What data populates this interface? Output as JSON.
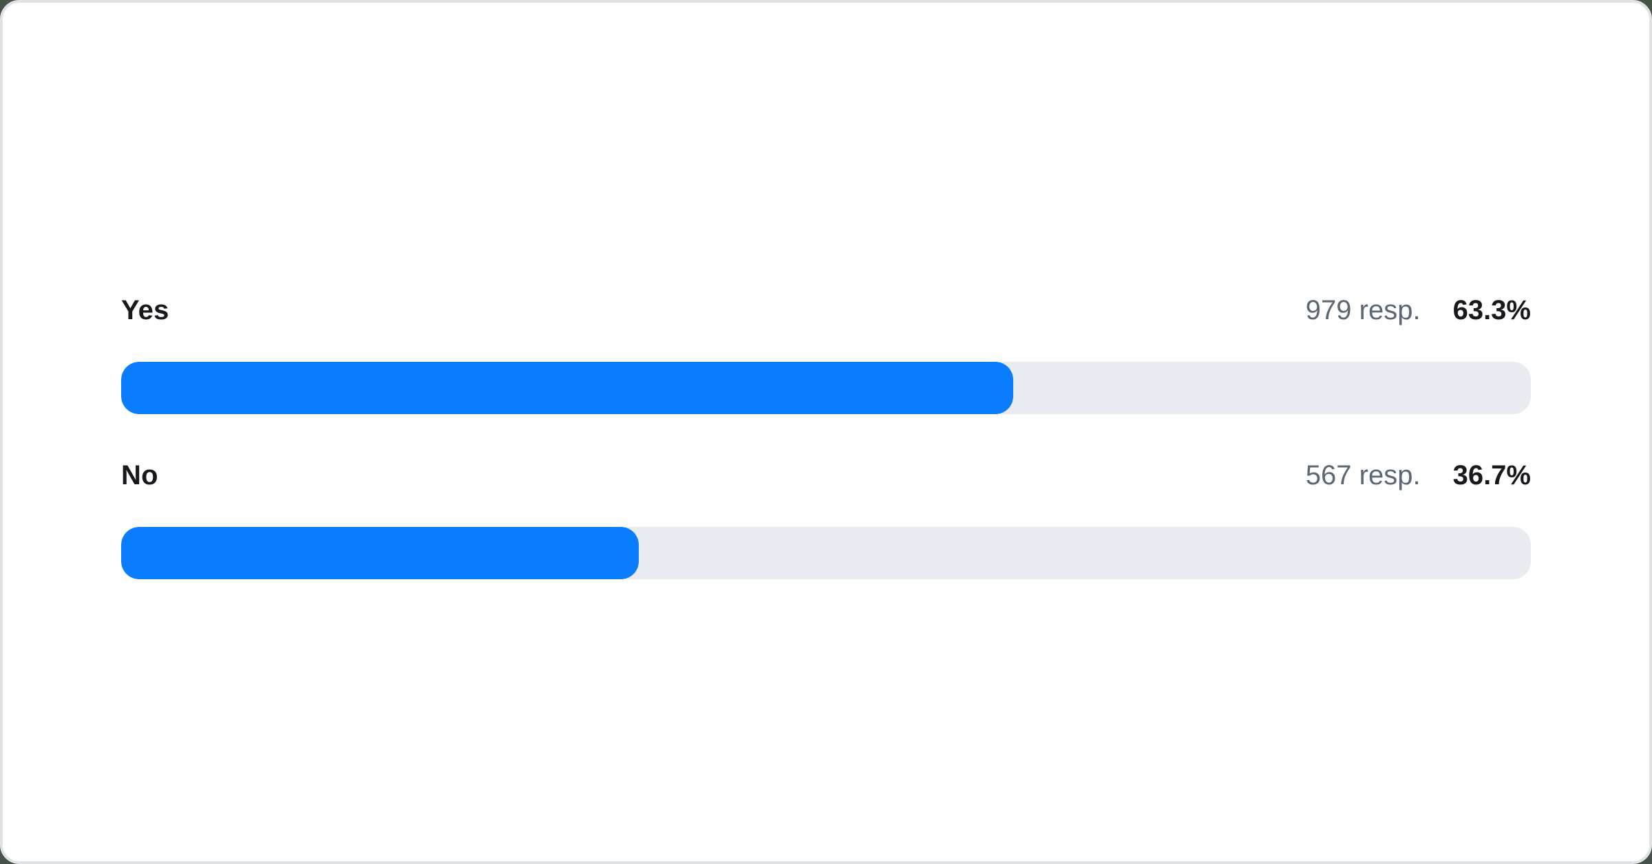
{
  "page": {
    "background_color": "#475349"
  },
  "card": {
    "background_color": "#ffffff",
    "border_color": "#dfe3e8"
  },
  "poll": {
    "bar_fill_color": "#0a7dff",
    "bar_track_color": "#e8ebef",
    "options": [
      {
        "label": "Yes",
        "responses_label": "979 resp.",
        "percent_label": "63.3%",
        "percent_value": 63.3
      },
      {
        "label": "No",
        "responses_label": "567 resp.",
        "percent_label": "36.7%",
        "percent_value": 36.7
      }
    ]
  },
  "chart_data": {
    "type": "bar",
    "orientation": "horizontal",
    "title": "",
    "categories": [
      "Yes",
      "No"
    ],
    "values": [
      63.3,
      36.7
    ],
    "value_unit": "%",
    "responses": [
      979,
      567
    ],
    "response_labels": [
      "979 resp.",
      "567 resp."
    ],
    "xlim": [
      0,
      100
    ],
    "grid": false,
    "legend": false,
    "bar_color": "#0a7dff",
    "track_color": "#e8ebef"
  }
}
